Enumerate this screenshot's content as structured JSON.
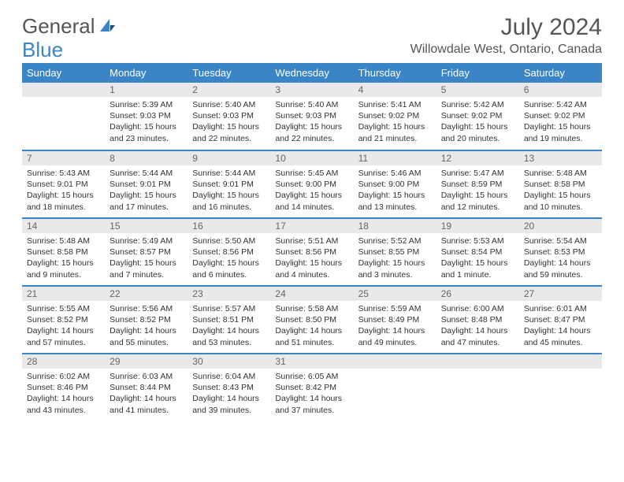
{
  "brand": {
    "part1": "General",
    "part2": "Blue"
  },
  "title": "July 2024",
  "location": "Willowdale West, Ontario, Canada",
  "colors": {
    "header_bg": "#3b85c7",
    "header_text": "#ffffff",
    "daynum_bg": "#e9e9e9",
    "daynum_text": "#666666",
    "body_text": "#333333",
    "rule": "#3b85c7"
  },
  "dayHeaders": [
    "Sunday",
    "Monday",
    "Tuesday",
    "Wednesday",
    "Thursday",
    "Friday",
    "Saturday"
  ],
  "weeks": [
    [
      {
        "num": "",
        "sunrise": "",
        "sunset": "",
        "daylight": ""
      },
      {
        "num": "1",
        "sunrise": "Sunrise: 5:39 AM",
        "sunset": "Sunset: 9:03 PM",
        "daylight": "Daylight: 15 hours and 23 minutes."
      },
      {
        "num": "2",
        "sunrise": "Sunrise: 5:40 AM",
        "sunset": "Sunset: 9:03 PM",
        "daylight": "Daylight: 15 hours and 22 minutes."
      },
      {
        "num": "3",
        "sunrise": "Sunrise: 5:40 AM",
        "sunset": "Sunset: 9:03 PM",
        "daylight": "Daylight: 15 hours and 22 minutes."
      },
      {
        "num": "4",
        "sunrise": "Sunrise: 5:41 AM",
        "sunset": "Sunset: 9:02 PM",
        "daylight": "Daylight: 15 hours and 21 minutes."
      },
      {
        "num": "5",
        "sunrise": "Sunrise: 5:42 AM",
        "sunset": "Sunset: 9:02 PM",
        "daylight": "Daylight: 15 hours and 20 minutes."
      },
      {
        "num": "6",
        "sunrise": "Sunrise: 5:42 AM",
        "sunset": "Sunset: 9:02 PM",
        "daylight": "Daylight: 15 hours and 19 minutes."
      }
    ],
    [
      {
        "num": "7",
        "sunrise": "Sunrise: 5:43 AM",
        "sunset": "Sunset: 9:01 PM",
        "daylight": "Daylight: 15 hours and 18 minutes."
      },
      {
        "num": "8",
        "sunrise": "Sunrise: 5:44 AM",
        "sunset": "Sunset: 9:01 PM",
        "daylight": "Daylight: 15 hours and 17 minutes."
      },
      {
        "num": "9",
        "sunrise": "Sunrise: 5:44 AM",
        "sunset": "Sunset: 9:01 PM",
        "daylight": "Daylight: 15 hours and 16 minutes."
      },
      {
        "num": "10",
        "sunrise": "Sunrise: 5:45 AM",
        "sunset": "Sunset: 9:00 PM",
        "daylight": "Daylight: 15 hours and 14 minutes."
      },
      {
        "num": "11",
        "sunrise": "Sunrise: 5:46 AM",
        "sunset": "Sunset: 9:00 PM",
        "daylight": "Daylight: 15 hours and 13 minutes."
      },
      {
        "num": "12",
        "sunrise": "Sunrise: 5:47 AM",
        "sunset": "Sunset: 8:59 PM",
        "daylight": "Daylight: 15 hours and 12 minutes."
      },
      {
        "num": "13",
        "sunrise": "Sunrise: 5:48 AM",
        "sunset": "Sunset: 8:58 PM",
        "daylight": "Daylight: 15 hours and 10 minutes."
      }
    ],
    [
      {
        "num": "14",
        "sunrise": "Sunrise: 5:48 AM",
        "sunset": "Sunset: 8:58 PM",
        "daylight": "Daylight: 15 hours and 9 minutes."
      },
      {
        "num": "15",
        "sunrise": "Sunrise: 5:49 AM",
        "sunset": "Sunset: 8:57 PM",
        "daylight": "Daylight: 15 hours and 7 minutes."
      },
      {
        "num": "16",
        "sunrise": "Sunrise: 5:50 AM",
        "sunset": "Sunset: 8:56 PM",
        "daylight": "Daylight: 15 hours and 6 minutes."
      },
      {
        "num": "17",
        "sunrise": "Sunrise: 5:51 AM",
        "sunset": "Sunset: 8:56 PM",
        "daylight": "Daylight: 15 hours and 4 minutes."
      },
      {
        "num": "18",
        "sunrise": "Sunrise: 5:52 AM",
        "sunset": "Sunset: 8:55 PM",
        "daylight": "Daylight: 15 hours and 3 minutes."
      },
      {
        "num": "19",
        "sunrise": "Sunrise: 5:53 AM",
        "sunset": "Sunset: 8:54 PM",
        "daylight": "Daylight: 15 hours and 1 minute."
      },
      {
        "num": "20",
        "sunrise": "Sunrise: 5:54 AM",
        "sunset": "Sunset: 8:53 PM",
        "daylight": "Daylight: 14 hours and 59 minutes."
      }
    ],
    [
      {
        "num": "21",
        "sunrise": "Sunrise: 5:55 AM",
        "sunset": "Sunset: 8:52 PM",
        "daylight": "Daylight: 14 hours and 57 minutes."
      },
      {
        "num": "22",
        "sunrise": "Sunrise: 5:56 AM",
        "sunset": "Sunset: 8:52 PM",
        "daylight": "Daylight: 14 hours and 55 minutes."
      },
      {
        "num": "23",
        "sunrise": "Sunrise: 5:57 AM",
        "sunset": "Sunset: 8:51 PM",
        "daylight": "Daylight: 14 hours and 53 minutes."
      },
      {
        "num": "24",
        "sunrise": "Sunrise: 5:58 AM",
        "sunset": "Sunset: 8:50 PM",
        "daylight": "Daylight: 14 hours and 51 minutes."
      },
      {
        "num": "25",
        "sunrise": "Sunrise: 5:59 AM",
        "sunset": "Sunset: 8:49 PM",
        "daylight": "Daylight: 14 hours and 49 minutes."
      },
      {
        "num": "26",
        "sunrise": "Sunrise: 6:00 AM",
        "sunset": "Sunset: 8:48 PM",
        "daylight": "Daylight: 14 hours and 47 minutes."
      },
      {
        "num": "27",
        "sunrise": "Sunrise: 6:01 AM",
        "sunset": "Sunset: 8:47 PM",
        "daylight": "Daylight: 14 hours and 45 minutes."
      }
    ],
    [
      {
        "num": "28",
        "sunrise": "Sunrise: 6:02 AM",
        "sunset": "Sunset: 8:46 PM",
        "daylight": "Daylight: 14 hours and 43 minutes."
      },
      {
        "num": "29",
        "sunrise": "Sunrise: 6:03 AM",
        "sunset": "Sunset: 8:44 PM",
        "daylight": "Daylight: 14 hours and 41 minutes."
      },
      {
        "num": "30",
        "sunrise": "Sunrise: 6:04 AM",
        "sunset": "Sunset: 8:43 PM",
        "daylight": "Daylight: 14 hours and 39 minutes."
      },
      {
        "num": "31",
        "sunrise": "Sunrise: 6:05 AM",
        "sunset": "Sunset: 8:42 PM",
        "daylight": "Daylight: 14 hours and 37 minutes."
      },
      {
        "num": "",
        "sunrise": "",
        "sunset": "",
        "daylight": ""
      },
      {
        "num": "",
        "sunrise": "",
        "sunset": "",
        "daylight": ""
      },
      {
        "num": "",
        "sunrise": "",
        "sunset": "",
        "daylight": ""
      }
    ]
  ]
}
